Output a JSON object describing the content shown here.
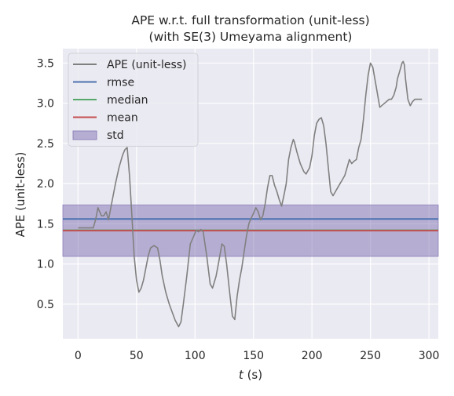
{
  "chart_data": {
    "type": "line",
    "title": [
      "APE w.r.t. full transformation (unit-less)",
      "(with SE(3) Umeyama alignment)"
    ],
    "xlabel": "t (s)",
    "xlabel_var": "t",
    "xlabel_unit": " (s)",
    "ylabel": "APE (unit-less)",
    "xlim": [
      -13,
      308
    ],
    "ylim": [
      0.07,
      3.68
    ],
    "xticks": [
      0,
      50,
      100,
      150,
      200,
      250,
      300
    ],
    "yticks": [
      0.5,
      1.0,
      1.5,
      2.0,
      2.5,
      3.0,
      3.5
    ],
    "xtick_labels": [
      "0",
      "50",
      "100",
      "150",
      "200",
      "250",
      "300"
    ],
    "ytick_labels": [
      "0.5",
      "1.0",
      "1.5",
      "2.0",
      "2.5",
      "3.0",
      "3.5"
    ],
    "grid": true,
    "legend_position": "top-left",
    "legend": [
      {
        "label": "APE (unit-less)",
        "kind": "line",
        "color": "#808080"
      },
      {
        "label": "rmse",
        "kind": "line",
        "color": "#4c72b0"
      },
      {
        "label": "median",
        "kind": "line",
        "color": "#55a868"
      },
      {
        "label": "mean",
        "kind": "line",
        "color": "#c44e52"
      },
      {
        "label": "std",
        "kind": "patch",
        "color": "#8172b2"
      }
    ],
    "stats": {
      "rmse": 1.56,
      "median": 1.42,
      "mean": 1.415,
      "std_band": [
        1.095,
        1.735
      ]
    },
    "series": [
      {
        "name": "APE (unit-less)",
        "color": "#808080",
        "x": [
          0,
          5,
          10,
          13,
          15,
          17,
          20,
          22,
          24,
          26,
          28,
          30,
          32,
          35,
          38,
          40,
          42,
          44,
          46,
          48,
          50,
          52,
          54,
          56,
          58,
          60,
          62,
          65,
          68,
          70,
          72,
          75,
          78,
          80,
          83,
          86,
          88,
          90,
          93,
          96,
          99,
          101,
          103,
          105,
          107,
          110,
          113,
          115,
          118,
          120,
          123,
          125,
          127,
          130,
          132,
          134,
          136,
          138,
          140,
          142,
          144,
          146,
          148,
          150,
          152,
          154,
          156,
          158,
          160,
          162,
          164,
          166,
          168,
          170,
          172,
          174,
          176,
          178,
          180,
          182,
          184,
          185,
          187,
          190,
          193,
          195,
          198,
          200,
          202,
          204,
          206,
          208,
          210,
          212,
          214,
          216,
          218,
          220,
          222,
          224,
          226,
          228,
          230,
          232,
          234,
          236,
          238,
          240,
          242,
          244,
          246,
          248,
          250,
          252,
          255,
          258,
          262,
          266,
          268,
          270,
          272,
          273,
          275,
          277,
          278,
          279,
          280,
          282,
          284,
          286,
          288,
          290,
          292,
          294
        ],
        "y": [
          1.45,
          1.45,
          1.45,
          1.45,
          1.55,
          1.7,
          1.6,
          1.6,
          1.65,
          1.55,
          1.7,
          1.85,
          2.0,
          2.2,
          2.35,
          2.42,
          2.45,
          2.1,
          1.6,
          1.1,
          0.8,
          0.65,
          0.7,
          0.8,
          0.95,
          1.1,
          1.2,
          1.23,
          1.2,
          1.05,
          0.85,
          0.65,
          0.5,
          0.42,
          0.3,
          0.22,
          0.28,
          0.5,
          0.85,
          1.25,
          1.35,
          1.42,
          1.4,
          1.43,
          1.4,
          1.1,
          0.75,
          0.7,
          0.85,
          1.0,
          1.25,
          1.22,
          1.0,
          0.6,
          0.35,
          0.31,
          0.6,
          0.8,
          0.95,
          1.15,
          1.35,
          1.5,
          1.57,
          1.63,
          1.7,
          1.65,
          1.55,
          1.6,
          1.75,
          1.95,
          2.1,
          2.1,
          1.98,
          1.9,
          1.8,
          1.72,
          1.85,
          2.0,
          2.3,
          2.45,
          2.55,
          2.52,
          2.4,
          2.25,
          2.15,
          2.12,
          2.2,
          2.35,
          2.6,
          2.75,
          2.8,
          2.82,
          2.72,
          2.5,
          2.2,
          1.9,
          1.85,
          1.9,
          1.95,
          2.0,
          2.05,
          2.1,
          2.2,
          2.3,
          2.25,
          2.28,
          2.3,
          2.45,
          2.55,
          2.8,
          3.1,
          3.35,
          3.5,
          3.45,
          3.2,
          2.95,
          3.0,
          3.05,
          3.05,
          3.1,
          3.2,
          3.3,
          3.4,
          3.5,
          3.52,
          3.48,
          3.3,
          3.05,
          2.97,
          3.02,
          3.05,
          3.05,
          3.05,
          3.05
        ]
      }
    ]
  }
}
